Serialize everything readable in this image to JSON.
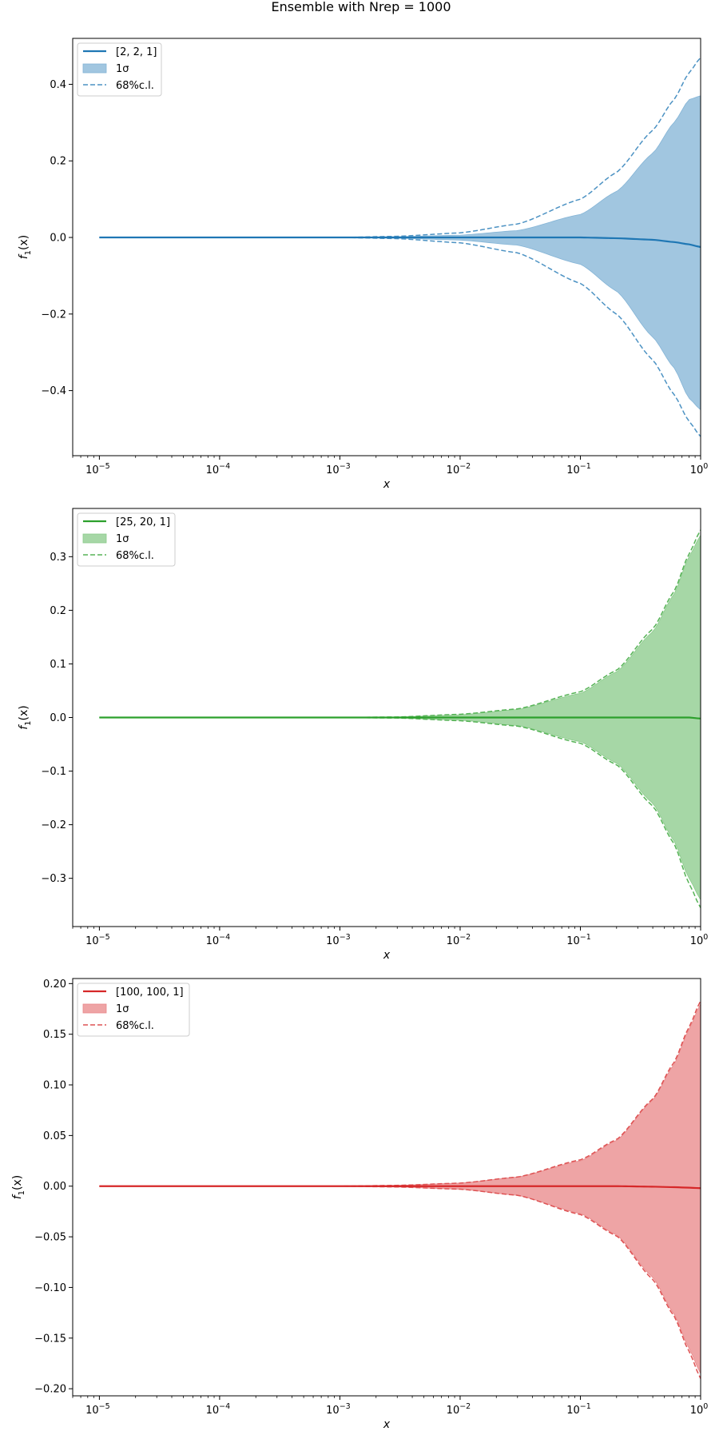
{
  "figure": {
    "title": "Ensemble with Nrep = 1000"
  },
  "chart_data": [
    {
      "type": "line",
      "xscale": "log",
      "xlim": [
        6e-06,
        1.0
      ],
      "ylim": [
        -0.57,
        0.52
      ],
      "yticks": [
        -0.4,
        -0.2,
        0.0,
        0.2,
        0.4
      ],
      "ytick_labels": [
        "−0.4",
        "−0.2",
        "0.0",
        "0.2",
        "0.4"
      ],
      "xticks": [
        1e-05,
        0.0001,
        0.001,
        0.01,
        0.1,
        1
      ],
      "xlabel": "x",
      "ylabel": "f1(x)",
      "ylabel_main": "f",
      "ylabel_sub": "1",
      "ylabel_tail": "(x)",
      "legend_position": "upper-left",
      "grid": false,
      "color": "#1f77b4",
      "legend": [
        "[2, 2, 1]",
        "1σ",
        "68%c.l."
      ],
      "x": [
        1e-05,
        0.001,
        0.003,
        0.01,
        0.03,
        0.1,
        0.2,
        0.4,
        0.6,
        0.8,
        1.0
      ],
      "series": [
        {
          "name": "[2, 2, 1]",
          "role": "mean",
          "values": [
            0.0,
            0.0,
            0.0,
            0.0,
            0.0,
            0.0,
            -0.002,
            -0.006,
            -0.012,
            -0.018,
            -0.025
          ]
        },
        {
          "name": "1σ",
          "role": "band-upper",
          "values": [
            0.0,
            0.0,
            0.002,
            0.006,
            0.018,
            0.06,
            0.12,
            0.22,
            0.3,
            0.36,
            0.37
          ]
        },
        {
          "name": "1σ",
          "role": "band-lower",
          "values": [
            0.0,
            0.0,
            -0.002,
            -0.007,
            -0.02,
            -0.07,
            -0.14,
            -0.26,
            -0.34,
            -0.42,
            -0.45
          ]
        },
        {
          "name": "68%c.l.",
          "role": "cl-upper",
          "values": [
            0.0,
            0.0,
            0.003,
            0.012,
            0.035,
            0.1,
            0.17,
            0.28,
            0.36,
            0.43,
            0.47
          ]
        },
        {
          "name": "68%c.l.",
          "role": "cl-lower",
          "values": [
            0.0,
            0.0,
            -0.003,
            -0.014,
            -0.04,
            -0.12,
            -0.2,
            -0.32,
            -0.41,
            -0.48,
            -0.52
          ]
        }
      ]
    },
    {
      "type": "line",
      "xscale": "log",
      "xlim": [
        6e-06,
        1.0
      ],
      "ylim": [
        -0.39,
        0.39
      ],
      "yticks": [
        -0.3,
        -0.2,
        -0.1,
        0.0,
        0.1,
        0.2,
        0.3
      ],
      "ytick_labels": [
        "−0.3",
        "−0.2",
        "−0.1",
        "0.0",
        "0.1",
        "0.2",
        "0.3"
      ],
      "xticks": [
        1e-05,
        0.0001,
        0.001,
        0.01,
        0.1,
        1
      ],
      "xlabel": "x",
      "ylabel": "f1(x)",
      "ylabel_main": "f",
      "ylabel_sub": "1",
      "ylabel_tail": "(x)",
      "legend_position": "upper-left",
      "grid": false,
      "color": "#2ca02c",
      "legend": [
        "[25, 20, 1]",
        "1σ",
        "68%c.l."
      ],
      "x": [
        1e-05,
        0.001,
        0.003,
        0.01,
        0.03,
        0.1,
        0.2,
        0.4,
        0.6,
        0.8,
        1.0
      ],
      "series": [
        {
          "name": "[25, 20, 1]",
          "role": "mean",
          "values": [
            0.0,
            0.0,
            0.0,
            0.0,
            0.0,
            0.0,
            0.0,
            0.0,
            0.0,
            0.0,
            -0.002
          ]
        },
        {
          "name": "1σ",
          "role": "band-upper",
          "values": [
            0.0,
            0.0,
            0.001,
            0.005,
            0.015,
            0.045,
            0.085,
            0.16,
            0.23,
            0.3,
            0.34
          ]
        },
        {
          "name": "1σ",
          "role": "band-lower",
          "values": [
            0.0,
            0.0,
            -0.001,
            -0.005,
            -0.015,
            -0.045,
            -0.085,
            -0.16,
            -0.23,
            -0.3,
            -0.34
          ]
        },
        {
          "name": "68%c.l.",
          "role": "cl-upper",
          "values": [
            0.0,
            0.0,
            0.001,
            0.006,
            0.016,
            0.048,
            0.088,
            0.165,
            0.235,
            0.305,
            0.35
          ]
        },
        {
          "name": "68%c.l.",
          "role": "cl-lower",
          "values": [
            0.0,
            0.0,
            -0.001,
            -0.006,
            -0.016,
            -0.048,
            -0.088,
            -0.165,
            -0.235,
            -0.31,
            -0.355
          ]
        }
      ]
    },
    {
      "type": "line",
      "xscale": "log",
      "xlim": [
        6e-06,
        1.0
      ],
      "ylim": [
        -0.207,
        0.205
      ],
      "yticks": [
        -0.2,
        -0.15,
        -0.1,
        -0.05,
        0.0,
        0.05,
        0.1,
        0.15,
        0.2
      ],
      "ytick_labels": [
        "−0.20",
        "−0.15",
        "−0.10",
        "−0.05",
        "0.00",
        "0.05",
        "0.10",
        "0.15",
        "0.20"
      ],
      "xticks": [
        1e-05,
        0.0001,
        0.001,
        0.01,
        0.1,
        1
      ],
      "xlabel": "x",
      "ylabel": "f1(x)",
      "ylabel_main": "f",
      "ylabel_sub": "1",
      "ylabel_tail": "(x)",
      "legend_position": "upper-left",
      "grid": false,
      "color": "#d62728",
      "legend": [
        "[100, 100, 1]",
        "1σ",
        "68%c.l."
      ],
      "x": [
        1e-05,
        0.001,
        0.003,
        0.01,
        0.03,
        0.1,
        0.2,
        0.4,
        0.6,
        0.8,
        1.0
      ],
      "series": [
        {
          "name": "[100, 100, 1]",
          "role": "mean",
          "values": [
            0.0,
            0.0,
            0.0,
            0.0,
            0.0,
            0.0,
            0.0,
            -0.0005,
            -0.001,
            -0.0015,
            -0.002
          ]
        },
        {
          "name": "1σ",
          "role": "band-upper",
          "values": [
            0.0,
            0.0,
            0.0008,
            0.003,
            0.009,
            0.025,
            0.045,
            0.085,
            0.12,
            0.155,
            0.18
          ]
        },
        {
          "name": "1σ",
          "role": "band-lower",
          "values": [
            0.0,
            0.0,
            -0.0008,
            -0.003,
            -0.009,
            -0.027,
            -0.048,
            -0.09,
            -0.126,
            -0.16,
            -0.185
          ]
        },
        {
          "name": "68%c.l.",
          "role": "cl-upper",
          "values": [
            0.0,
            0.0,
            0.0008,
            0.003,
            0.009,
            0.026,
            0.046,
            0.086,
            0.122,
            0.157,
            0.183
          ]
        },
        {
          "name": "68%c.l.",
          "role": "cl-lower",
          "values": [
            0.0,
            0.0,
            -0.0008,
            -0.003,
            -0.009,
            -0.028,
            -0.049,
            -0.092,
            -0.128,
            -0.163,
            -0.19
          ]
        }
      ]
    }
  ]
}
